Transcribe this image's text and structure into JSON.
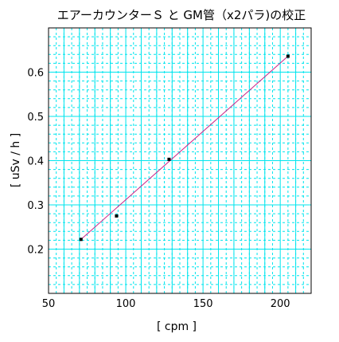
{
  "chart_data": {
    "type": "scatter",
    "title": "エアーカウンターＳ と GM管（x2パラ)の校正",
    "xlabel": "[ cpm ]",
    "ylabel": "[ uSv / h ]",
    "xlim": [
      50,
      220
    ],
    "ylim": [
      0.1,
      0.7
    ],
    "x_ticks": [
      50,
      100,
      150,
      200
    ],
    "y_ticks": [
      0.2,
      0.3,
      0.4,
      0.5,
      0.6
    ],
    "x_tick_labels": [
      "50",
      "100",
      "150",
      "200"
    ],
    "y_tick_labels": [
      "0.2",
      "0.3",
      "0.4",
      "0.5",
      "0.6"
    ],
    "grid": true,
    "grid_minor": {
      "x_step": 5,
      "y_step": 0.02
    },
    "colors": {
      "grid": "#00e5ee",
      "line": "#cc2288",
      "points": "#000000",
      "frame": "#000000",
      "background": "#ffffff"
    },
    "series": [
      {
        "points": [
          {
            "x": 71,
            "y": 0.222
          },
          {
            "x": 94,
            "y": 0.275
          },
          {
            "x": 128,
            "y": 0.403
          },
          {
            "x": 205,
            "y": 0.636
          }
        ]
      }
    ],
    "fit_line": {
      "x": [
        71,
        205
      ],
      "y": [
        0.222,
        0.636
      ]
    }
  }
}
